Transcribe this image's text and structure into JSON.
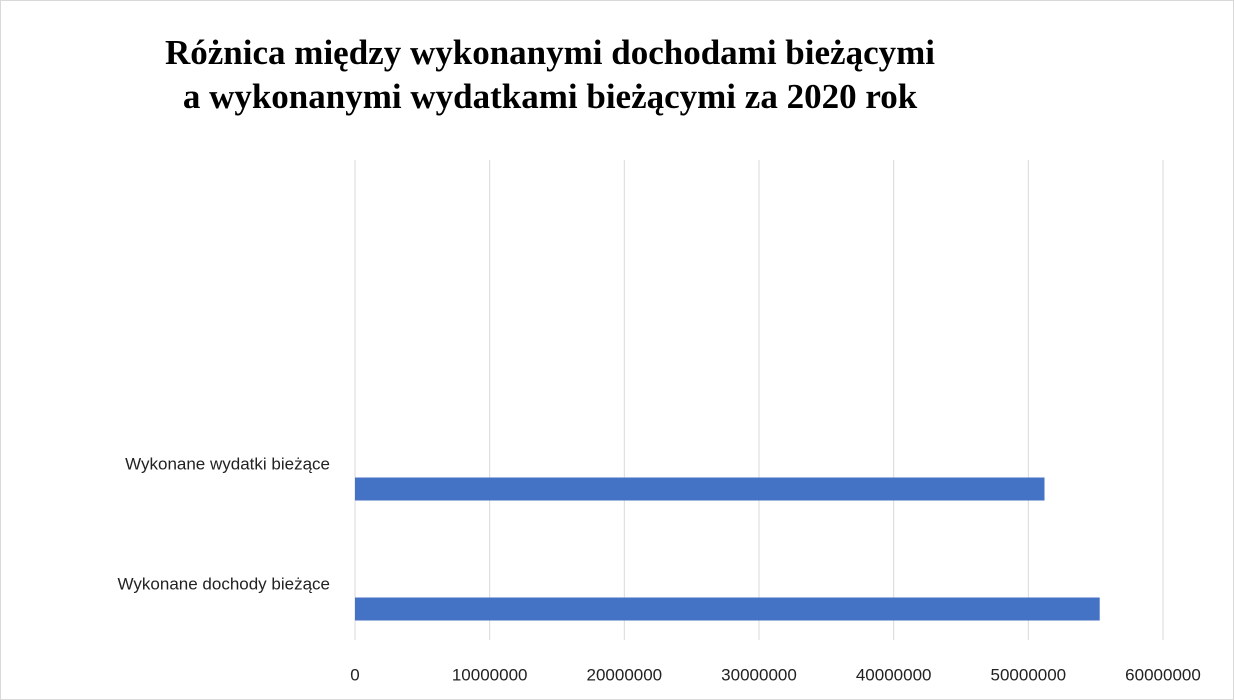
{
  "chart_data": {
    "type": "bar",
    "orientation": "horizontal",
    "title": [
      "Różnica między wykonanymi  dochodami bieżącymi",
      "a wykonanymi wydatkami bieżącymi za 2020 rok"
    ],
    "categories": [
      "Wykonane dochody bieżące",
      "Wykonane wydatki bieżące"
    ],
    "values": [
      55300000,
      51200000
    ],
    "color": "#4472c4",
    "xlim": [
      0,
      60000000
    ],
    "xticks": [
      0,
      10000000,
      20000000,
      30000000,
      40000000,
      50000000,
      60000000
    ],
    "grid": true
  }
}
